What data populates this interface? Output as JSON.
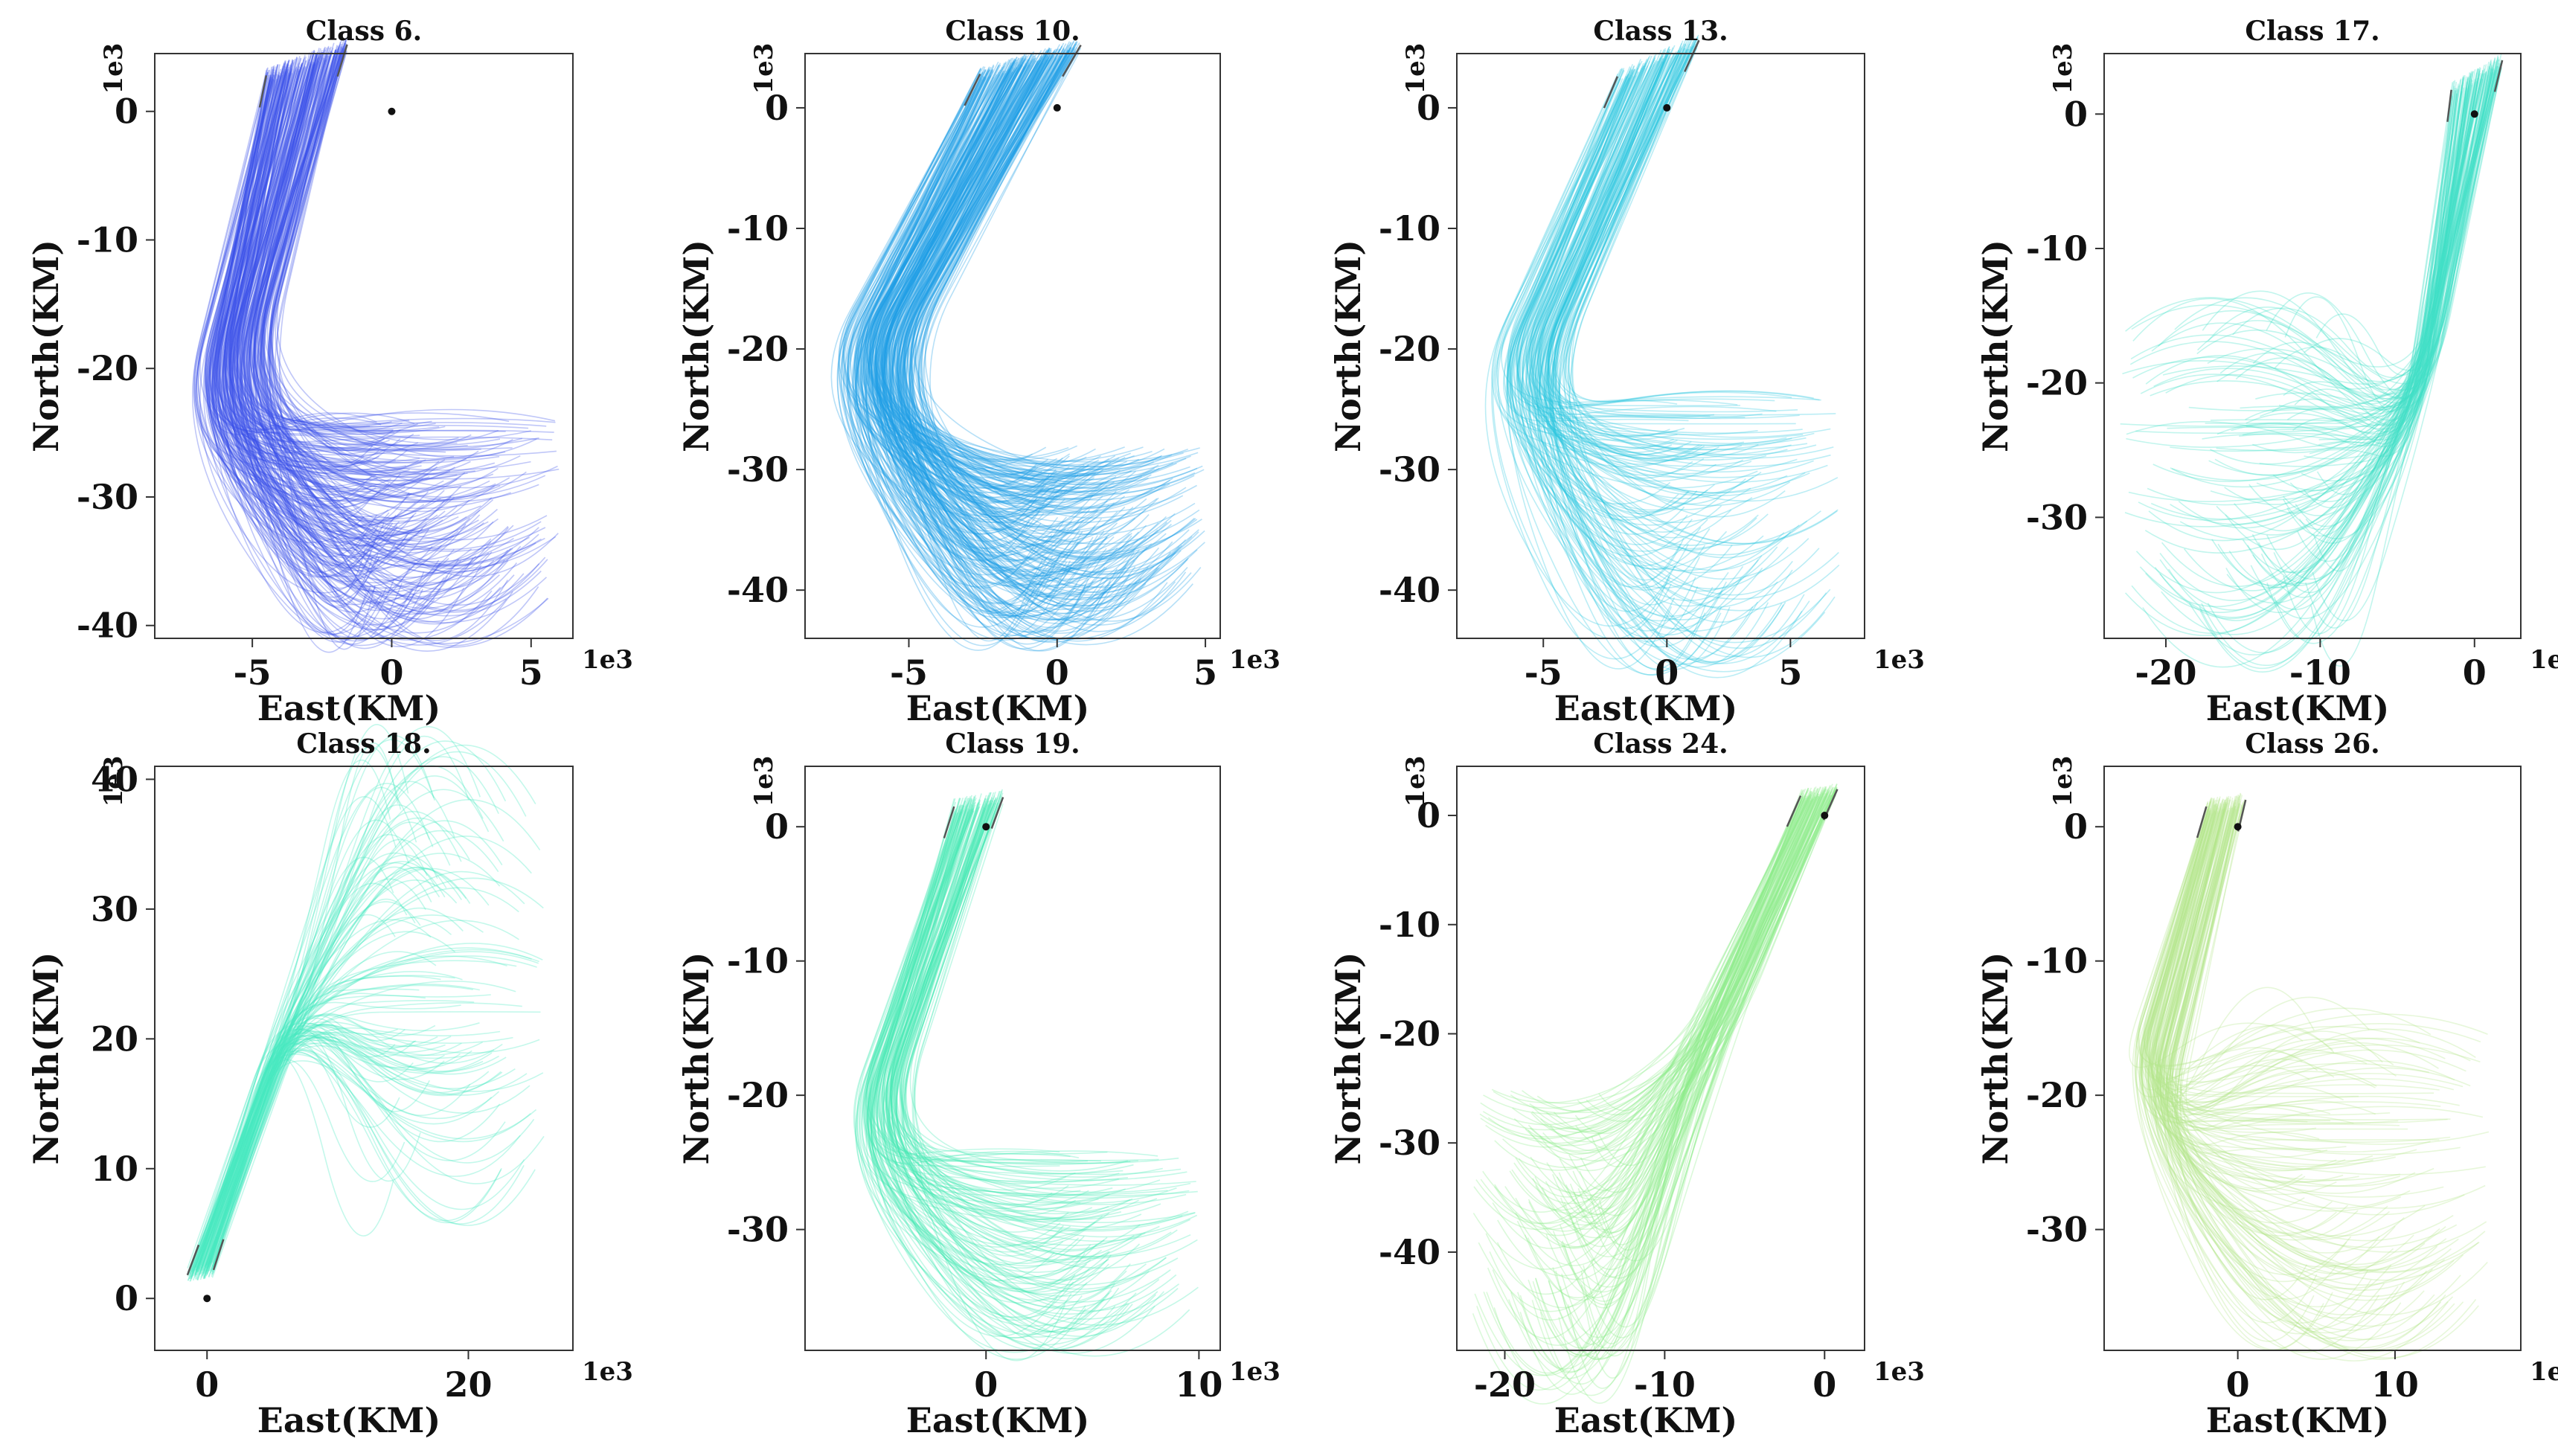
{
  "chart_data": [
    {
      "type": "line",
      "title": "Class 6.",
      "xlabel": "East(KM)",
      "ylabel": "North(KM)",
      "x_multiplier": "1e3",
      "y_multiplier": "1e3",
      "xlim": [
        -8.5,
        6.5
      ],
      "ylim": [
        -41,
        4.5
      ],
      "xticks": [
        -5,
        0,
        5
      ],
      "yticks": [
        0,
        -10,
        -20,
        -30,
        -40
      ],
      "color": "#3a50e8",
      "origin_marker": [
        0,
        0
      ],
      "trajectory_bundle": {
        "start_lines": [
          [
            -4.5,
            2.8
          ],
          [
            -1.6,
            5.2
          ]
        ],
        "corners": [
          [
            -7.3,
            -26.5
          ],
          [
            -5.3,
            -21.5
          ]
        ],
        "east_range_end": [
          -1,
          6
        ],
        "north_range_end": [
          -38,
          -24
        ],
        "count": 260
      },
      "legend": "none",
      "grid": false
    },
    {
      "type": "line",
      "title": "Class 10.",
      "xlabel": "East(KM)",
      "ylabel": "North(KM)",
      "x_multiplier": "1e3",
      "y_multiplier": "1e3",
      "xlim": [
        -8.5,
        5.5
      ],
      "ylim": [
        -44,
        4.5
      ],
      "xticks": [
        -5,
        0,
        5
      ],
      "yticks": [
        0,
        -10,
        -20,
        -30,
        -40
      ],
      "color": "#1ea0e6",
      "origin_marker": [
        0,
        0
      ],
      "trajectory_bundle": {
        "start_lines": [
          [
            -2.6,
            2.8
          ],
          [
            0.8,
            5.2
          ]
        ],
        "corners": [
          [
            -8.0,
            -24.5
          ],
          [
            -6.0,
            -23.5
          ]
        ],
        "east_range_end": [
          -1,
          5
        ],
        "north_range_end": [
          -40,
          -28
        ],
        "count": 260
      },
      "legend": "none",
      "grid": false
    },
    {
      "type": "line",
      "title": "Class 13.",
      "xlabel": "East(KM)",
      "ylabel": "North(KM)",
      "x_multiplier": "1e3",
      "y_multiplier": "1e3",
      "xlim": [
        -8.5,
        8
      ],
      "ylim": [
        -44,
        4.5
      ],
      "xticks": [
        -5,
        0,
        5
      ],
      "yticks": [
        0,
        -10,
        -20,
        -30,
        -40
      ],
      "color": "#30c8e0",
      "origin_marker": [
        0,
        0
      ],
      "trajectory_bundle": {
        "start_lines": [
          [
            -2.0,
            2.6
          ],
          [
            1.3,
            5.6
          ]
        ],
        "corners": [
          [
            -7.8,
            -25.5
          ],
          [
            -5.5,
            -25.0
          ]
        ],
        "east_range_end": [
          0,
          7
        ],
        "north_range_end": [
          -42,
          -24
        ],
        "count": 150
      },
      "legend": "none",
      "grid": false
    },
    {
      "type": "line",
      "title": "Class 17.",
      "xlabel": "East(KM)",
      "ylabel": "North(KM)",
      "x_multiplier": "1e3",
      "y_multiplier": "1e3",
      "xlim": [
        -24,
        3
      ],
      "ylim": [
        -39,
        4.5
      ],
      "xticks": [
        -20,
        -10,
        0
      ],
      "yticks": [
        0,
        -10,
        -20,
        -30
      ],
      "color": "#40e0c8",
      "origin_marker": [
        0,
        0
      ],
      "trajectory_bundle": {
        "start_lines": [
          [
            -1.5,
            1.8
          ],
          [
            1.8,
            4.0
          ]
        ],
        "corners": [
          [
            -4.5,
            -26.5
          ],
          [
            -3.5,
            -21.5
          ]
        ],
        "east_range_end": [
          -23,
          -10
        ],
        "north_range_end": [
          -37,
          -16
        ],
        "count": 140
      },
      "legend": "none",
      "grid": false
    },
    {
      "type": "line",
      "title": "Class 18.",
      "xlabel": "East(KM)",
      "ylabel": "North(KM)",
      "x_multiplier": "1e3",
      "y_multiplier": "1e3",
      "xlim": [
        -4,
        28
      ],
      "ylim": [
        -4,
        41
      ],
      "xticks": [
        0,
        20
      ],
      "yticks": [
        0,
        10,
        20,
        30,
        40
      ],
      "color": "#48e8c0",
      "origin_marker": [
        0,
        0
      ],
      "trajectory_bundle": {
        "start_lines": [
          [
            -1.5,
            1.8
          ],
          [
            0.5,
            2.2
          ]
        ],
        "corners": [
          [
            6.0,
            22.0
          ],
          [
            7.5,
            24.0
          ]
        ],
        "east_range_end": [
          14,
          26
        ],
        "north_range_end": [
          9,
          39
        ],
        "count": 130
      },
      "legend": "none",
      "grid": false
    },
    {
      "type": "line",
      "title": "Class 19.",
      "xlabel": "East(KM)",
      "ylabel": "North(KM)",
      "x_multiplier": "1e3",
      "y_multiplier": "1e3",
      "xlim": [
        -8.5,
        11
      ],
      "ylim": [
        -39,
        4.5
      ],
      "xticks": [
        0,
        10
      ],
      "yticks": [
        0,
        -10,
        -20,
        -30
      ],
      "color": "#48e8b4",
      "origin_marker": [
        0,
        0
      ],
      "trajectory_bundle": {
        "start_lines": [
          [
            -1.5,
            1.5
          ],
          [
            0.8,
            2.2
          ]
        ],
        "corners": [
          [
            -7.0,
            -26.0
          ],
          [
            -5.0,
            -23.0
          ]
        ],
        "east_range_end": [
          3,
          10
        ],
        "north_range_end": [
          -36,
          -24
        ],
        "count": 130
      },
      "legend": "none",
      "grid": false
    },
    {
      "type": "line",
      "title": "Class 24.",
      "xlabel": "East(KM)",
      "ylabel": "North(KM)",
      "x_multiplier": "1e3",
      "y_multiplier": "1e3",
      "xlim": [
        -23,
        2.5
      ],
      "ylim": [
        -49,
        4.5
      ],
      "xticks": [
        -20,
        -10,
        0
      ],
      "yticks": [
        0,
        -10,
        -20,
        -30,
        -40
      ],
      "color": "#90ec8c",
      "origin_marker": [
        0,
        0
      ],
      "trajectory_bundle": {
        "start_lines": [
          [
            -1.5,
            1.8
          ],
          [
            0.8,
            2.4
          ]
        ],
        "corners": [
          [
            -8.5,
            -21.5
          ],
          [
            -6.0,
            -20.0
          ]
        ],
        "east_range_end": [
          -22,
          -14
        ],
        "north_range_end": [
          -46,
          -25
        ],
        "count": 130
      },
      "legend": "none",
      "grid": false
    },
    {
      "type": "line",
      "title": "Class 26.",
      "xlabel": "East(KM)",
      "ylabel": "North(KM)",
      "x_multiplier": "1e3",
      "y_multiplier": "1e3",
      "xlim": [
        -8.5,
        18
      ],
      "ylim": [
        -39,
        4.5
      ],
      "xticks": [
        0,
        10
      ],
      "yticks": [
        0,
        -10,
        -20,
        -30
      ],
      "color": "#b4e68c",
      "origin_marker": [
        0,
        0
      ],
      "trajectory_bundle": {
        "start_lines": [
          [
            -2.0,
            1.5
          ],
          [
            0.5,
            2.0
          ]
        ],
        "corners": [
          [
            -7.5,
            -20.5
          ],
          [
            -5.0,
            -25.0
          ]
        ],
        "east_range_end": [
          4,
          16
        ],
        "north_range_end": [
          -36,
          -15
        ],
        "count": 140
      },
      "legend": "none",
      "grid": false
    }
  ]
}
